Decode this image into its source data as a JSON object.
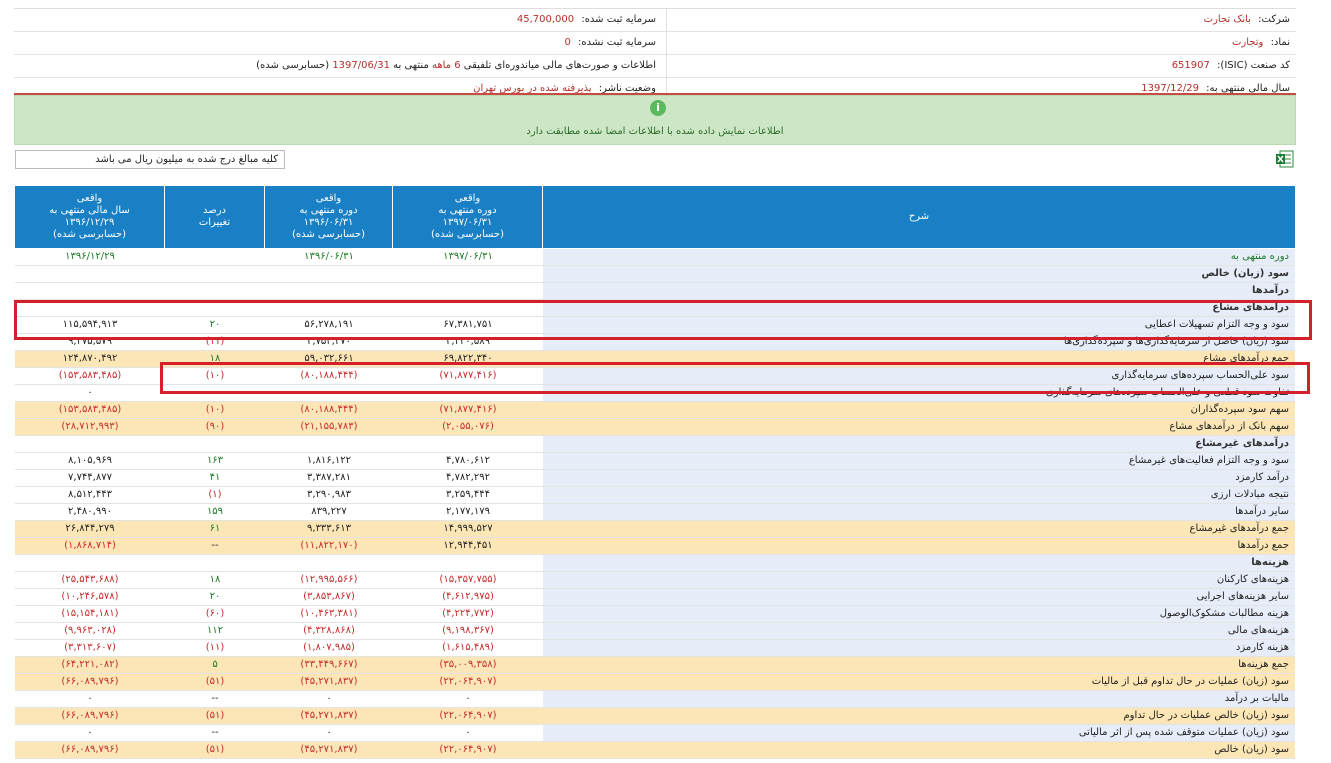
{
  "info": {
    "company_label": "شرکت:",
    "company_value": "بانک تجارت",
    "reg_capital_label": "سرمایه ثبت شده:",
    "reg_capital_value": "45,700,000",
    "symbol_label": "نماد:",
    "symbol_value": "وتجارت",
    "unreg_capital_label": "سرمایه ثبت نشده:",
    "unreg_capital_value": "0",
    "isic_label": "کد صنعت (ISIC):",
    "isic_value": "651907",
    "report_text": "اطلاعات و صورت‌های مالی میاندوره‌ای تلفیقی",
    "report_period": "6 ماهه",
    "report_to": "منتهی به",
    "report_date": "1397/06/31",
    "report_status": "(حسابرسی شده)",
    "fiscal_label": "سال مالی منتهی به:",
    "fiscal_value": "1397/12/29",
    "publisher_label": "وضعیت ناشر:",
    "publisher_value": "پذیرفته شده در بورس تهران"
  },
  "notice": {
    "icon": "info-icon",
    "message": "اطلاعات نمایش داده شده با اطلاعات امضا شده مطابقت دارد"
  },
  "unit_note": "کلیه مبالغ درج شده به میلیون ریال می باشد",
  "excel_icon": "excel-export-icon",
  "headers": {
    "desc": "شرح",
    "col1": [
      "واقعی",
      "دوره منتهی به",
      "۱۳۹۷/۰۶/۳۱",
      "(حسابرسی شده)"
    ],
    "col2": [
      "واقعی",
      "دوره منتهی به",
      "۱۳۹۶/۰۶/۳۱",
      "(حسابرسی شده)"
    ],
    "col3": [
      "درصد",
      "تغییرات"
    ],
    "col4": [
      "واقعی",
      "سال مالی منتهی به",
      "۱۳۹۶/۱۲/۲۹",
      "(حسابرسی شده)"
    ]
  },
  "rows": [
    {
      "desc": "دوره منتهی به",
      "v1": "۱۳۹۷/۰۶/۳۱",
      "v2": "۱۳۹۶/۰۶/۳۱",
      "pct": "",
      "v4": "۱۳۹۶/۱۲/۲۹",
      "type": "period"
    },
    {
      "desc": "سود (زیان) خالص",
      "v1": "",
      "v2": "",
      "pct": "",
      "v4": "",
      "type": "section"
    },
    {
      "desc": "درآمدها",
      "v1": "",
      "v2": "",
      "pct": "",
      "v4": "",
      "type": "section"
    },
    {
      "desc": "درآمدهای مشاع",
      "v1": "",
      "v2": "",
      "pct": "",
      "v4": "",
      "type": "section"
    },
    {
      "desc": "سود و وجه التزام تسهیلات اعطایی",
      "v1": "۶۷,۳۸۱,۷۵۱",
      "v2": "۵۶,۲۷۸,۱۹۱",
      "pct": "۲۰",
      "v4": "۱۱۵,۵۹۴,۹۱۳",
      "type": "normal"
    },
    {
      "desc": "سود (زیان) حاصل از سرمایه‌گذاری‌ها و سپرده‌گذاری‌ها",
      "v1": "۲,۴۴۰,۵۸۹",
      "v2": "۲,۷۵۴,۴۷۰",
      "pct": "(۱۱)",
      "v4": "۹,۲۷۵,۵۷۹",
      "type": "normal"
    },
    {
      "desc": "جمع درآمدهای مشاع",
      "v1": "۶۹,۸۲۲,۳۴۰",
      "v2": "۵۹,۰۳۲,۶۶۱",
      "pct": "۱۸",
      "v4": "۱۲۴,۸۷۰,۴۹۲",
      "type": "hl"
    },
    {
      "desc": "سود علی‌الحساب سپرده‌های سرمایه‌گذاری",
      "v1": "(۷۱,۸۷۷,۴۱۶)",
      "v2": "(۸۰,۱۸۸,۴۴۴)",
      "pct": "(۱۰)",
      "v4": "(۱۵۳,۵۸۳,۴۸۵)",
      "type": "normal"
    },
    {
      "desc": "تفاوت سود قطعی و علی‌الحساب سپرده‌های سرمایه‌گذاری",
      "v1": "۰",
      "v2": "۰",
      "pct": "--",
      "v4": "۰",
      "type": "normal"
    },
    {
      "desc": "سهم سود سپرده‌گذاران",
      "v1": "(۷۱,۸۷۷,۴۱۶)",
      "v2": "(۸۰,۱۸۸,۴۴۴)",
      "pct": "(۱۰)",
      "v4": "(۱۵۳,۵۸۳,۴۸۵)",
      "type": "hl"
    },
    {
      "desc": "سهم بانک از درآمدهای مشاع",
      "v1": "(۲,۰۵۵,۰۷۶)",
      "v2": "(۲۱,۱۵۵,۷۸۳)",
      "pct": "(۹۰)",
      "v4": "(۲۸,۷۱۲,۹۹۳)",
      "type": "hl"
    },
    {
      "desc": "درآمدهای غیرمشاع",
      "v1": "",
      "v2": "",
      "pct": "",
      "v4": "",
      "type": "section"
    },
    {
      "desc": "سود و وجه التزام فعالیت‌های غیرمشاع",
      "v1": "۴,۷۸۰,۶۱۲",
      "v2": "۱,۸۱۶,۱۲۲",
      "pct": "۱۶۳",
      "v4": "۸,۱۰۵,۹۶۹",
      "type": "normal"
    },
    {
      "desc": "درآمد کارمزد",
      "v1": "۴,۷۸۲,۲۹۲",
      "v2": "۳,۳۸۷,۲۸۱",
      "pct": "۴۱",
      "v4": "۷,۷۴۴,۸۷۷",
      "type": "normal"
    },
    {
      "desc": "نتیجه مبادلات ارزی",
      "v1": "۳,۲۵۹,۴۴۴",
      "v2": "۳,۲۹۰,۹۸۳",
      "pct": "(۱)",
      "v4": "۸,۵۱۲,۴۴۳",
      "type": "normal"
    },
    {
      "desc": "سایر درآمدها",
      "v1": "۲,۱۷۷,۱۷۹",
      "v2": "۸۳۹,۲۲۷",
      "pct": "۱۵۹",
      "v4": "۲,۴۸۰,۹۹۰",
      "type": "normal"
    },
    {
      "desc": "جمع درآمدهای غیرمشاع",
      "v1": "۱۴,۹۹۹,۵۲۷",
      "v2": "۹,۳۳۳,۶۱۳",
      "pct": "۶۱",
      "v4": "۲۶,۸۴۴,۲۷۹",
      "type": "hl"
    },
    {
      "desc": "جمع درآمدها",
      "v1": "۱۲,۹۴۴,۴۵۱",
      "v2": "(۱۱,۸۲۲,۱۷۰)",
      "pct": "--",
      "v4": "(۱,۸۶۸,۷۱۴)",
      "type": "hl"
    },
    {
      "desc": "هزینه‌ها",
      "v1": "",
      "v2": "",
      "pct": "",
      "v4": "",
      "type": "section"
    },
    {
      "desc": "هزینه‌های کارکنان",
      "v1": "(۱۵,۳۵۷,۷۵۵)",
      "v2": "(۱۲,۹۹۵,۵۶۶)",
      "pct": "۱۸",
      "v4": "(۲۵,۵۴۳,۶۸۸)",
      "type": "normal"
    },
    {
      "desc": "سایر هزینه‌های اجرایی",
      "v1": "(۴,۶۱۲,۹۷۵)",
      "v2": "(۳,۸۵۳,۸۶۷)",
      "pct": "۲۰",
      "v4": "(۱۰,۲۴۶,۵۷۸)",
      "type": "normal"
    },
    {
      "desc": "هزینه مطالبات مشکوک‌الوصول",
      "v1": "(۴,۲۲۴,۷۷۲)",
      "v2": "(۱۰,۴۶۳,۳۸۱)",
      "pct": "(۶۰)",
      "v4": "(۱۵,۱۵۴,۱۸۱)",
      "type": "normal"
    },
    {
      "desc": "هزینه‌های مالی",
      "v1": "(۹,۱۹۸,۳۶۷)",
      "v2": "(۴,۳۲۸,۸۶۸)",
      "pct": "۱۱۲",
      "v4": "(۹,۹۶۳,۰۲۸)",
      "type": "normal"
    },
    {
      "desc": "هزینه کارمزد",
      "v1": "(۱,۶۱۵,۴۸۹)",
      "v2": "(۱,۸۰۷,۹۸۵)",
      "pct": "(۱۱)",
      "v4": "(۳,۳۱۳,۶۰۷)",
      "type": "normal"
    },
    {
      "desc": "جمع هزینه‌ها",
      "v1": "(۳۵,۰۰۹,۳۵۸)",
      "v2": "(۳۳,۴۴۹,۶۶۷)",
      "pct": "۵",
      "v4": "(۶۴,۲۲۱,۰۸۲)",
      "type": "hl"
    },
    {
      "desc": "سود (زیان) عملیات در حال تداوم قبل از مالیات",
      "v1": "(۲۲,۰۶۴,۹۰۷)",
      "v2": "(۴۵,۲۷۱,۸۳۷)",
      "pct": "(۵۱)",
      "v4": "(۶۶,۰۸۹,۷۹۶)",
      "type": "hl"
    },
    {
      "desc": "مالیات بر درآمد",
      "v1": "۰",
      "v2": "۰",
      "pct": "--",
      "v4": "۰",
      "type": "normal"
    },
    {
      "desc": "سود (زیان) خالص عملیات در حال تداوم",
      "v1": "(۲۲,۰۶۴,۹۰۷)",
      "v2": "(۴۵,۲۷۱,۸۳۷)",
      "pct": "(۵۱)",
      "v4": "(۶۶,۰۸۹,۷۹۶)",
      "type": "hl"
    },
    {
      "desc": "سود (زیان) عملیات متوقف شده پس از اثر مالیاتی",
      "v1": "۰",
      "v2": "۰",
      "pct": "--",
      "v4": "۰",
      "type": "normal"
    },
    {
      "desc": "سود (زیان) خالص",
      "v1": "(۲۲,۰۶۴,۹۰۷)",
      "v2": "(۴۵,۲۷۱,۸۳۷)",
      "pct": "(۵۱)",
      "v4": "(۶۶,۰۸۹,۷۹۶)",
      "type": "hl"
    }
  ],
  "colors": {
    "header": "#1a80c5",
    "highlight": "#fde6b5",
    "negative": "#c62c2c",
    "positive": "#1d7a26",
    "annotation": "#d4202a"
  }
}
